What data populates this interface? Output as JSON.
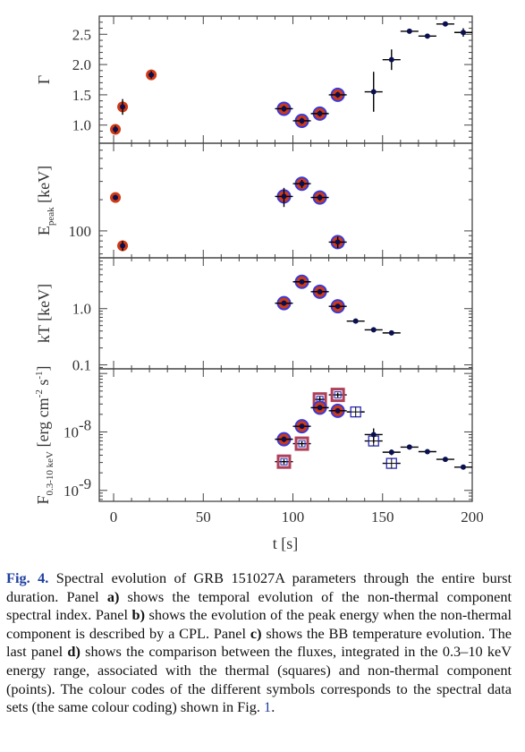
{
  "colors": {
    "frame": "#444444",
    "point_fill": "#0a0f50",
    "red_ring": "#d03a14",
    "blue_ring": "#3a3ad8",
    "square_red": "#b0405a",
    "square_blue": "#2a2ab0",
    "link": "#1f3f9e"
  },
  "chart_data": {
    "type": "scatter",
    "xlabel": "t [s]",
    "xlim": [
      -8,
      200
    ],
    "x_ticks": [
      0,
      50,
      100,
      150,
      200
    ],
    "panels": [
      {
        "id": "gamma",
        "ylabel": "Γ",
        "scale": "linear",
        "ylim": [
          0.7,
          2.8
        ],
        "y_ticks": [
          1.0,
          1.5,
          2.0,
          2.5
        ],
        "y_tick_labels": [
          "1.0",
          "1.5",
          "2.0",
          "2.5"
        ],
        "points": [
          {
            "x": 1,
            "y": 0.93,
            "xerr": 0.6,
            "yerr": 0.06,
            "style": "red"
          },
          {
            "x": 5,
            "y": 1.3,
            "xerr": 1.2,
            "yerr": 0.13,
            "style": "red"
          },
          {
            "x": 21,
            "y": 1.83,
            "xerr": 1.5,
            "yerr": 0.06,
            "style": "red"
          },
          {
            "x": 95,
            "y": 1.27,
            "xerr": 5,
            "yerr": 0.05,
            "style": "blue"
          },
          {
            "x": 105,
            "y": 1.07,
            "xerr": 5,
            "yerr": 0.05,
            "style": "blue"
          },
          {
            "x": 115,
            "y": 1.19,
            "xerr": 5,
            "yerr": 0.05,
            "style": "blue"
          },
          {
            "x": 125,
            "y": 1.5,
            "xerr": 5,
            "yerr": 0.05,
            "style": "blue"
          },
          {
            "x": 145,
            "y": 1.55,
            "xerr": 5,
            "yerr": 0.33,
            "style": "plain"
          },
          {
            "x": 155,
            "y": 2.08,
            "xerr": 5,
            "yerr": 0.17,
            "style": "plain"
          },
          {
            "x": 165,
            "y": 2.55,
            "xerr": 5,
            "yerr": 0.03,
            "style": "plain"
          },
          {
            "x": 175,
            "y": 2.47,
            "xerr": 5,
            "yerr": 0.03,
            "style": "plain"
          },
          {
            "x": 185,
            "y": 2.67,
            "xerr": 5,
            "yerr": 0.04,
            "style": "plain"
          },
          {
            "x": 195,
            "y": 2.53,
            "xerr": 5,
            "yerr": 0.07,
            "style": "plain"
          }
        ]
      },
      {
        "id": "epeak",
        "ylabel": "E",
        "ylabel_sub": "peak",
        "ylabel_unit": " [keV]",
        "scale": "log",
        "ylim": [
          55,
          700
        ],
        "y_ticks": [
          100
        ],
        "y_tick_labels": [
          "100"
        ],
        "points": [
          {
            "x": 1,
            "y": 210,
            "xerr": 0.6,
            "yerr": 12,
            "style": "red"
          },
          {
            "x": 5,
            "y": 72,
            "xerr": 1.2,
            "yerr": 8,
            "style": "red"
          },
          {
            "x": 95,
            "y": 215,
            "xerr": 5,
            "yerr": 45,
            "style": "blue"
          },
          {
            "x": 105,
            "y": 285,
            "xerr": 5,
            "yerr": 25,
            "style": "blue"
          },
          {
            "x": 115,
            "y": 210,
            "xerr": 5,
            "yerr": 15,
            "style": "blue"
          },
          {
            "x": 125,
            "y": 78,
            "xerr": 5,
            "yerr": 10,
            "style": "blue"
          }
        ]
      },
      {
        "id": "kT",
        "ylabel": "kT [keV]",
        "scale": "log",
        "ylim": [
          0.085,
          8
        ],
        "y_ticks": [
          0.1,
          1.0
        ],
        "y_tick_labels": [
          "0.1",
          "1.0"
        ],
        "points": [
          {
            "x": 95,
            "y": 1.25,
            "xerr": 5,
            "yerr": 0.12,
            "style": "blue"
          },
          {
            "x": 105,
            "y": 3.0,
            "xerr": 5,
            "yerr": 0.25,
            "style": "blue"
          },
          {
            "x": 115,
            "y": 2.0,
            "xerr": 5,
            "yerr": 0.15,
            "style": "blue"
          },
          {
            "x": 125,
            "y": 1.1,
            "xerr": 5,
            "yerr": 0.1,
            "style": "blue"
          },
          {
            "x": 135,
            "y": 0.6,
            "xerr": 5,
            "yerr": 0.03,
            "style": "plain"
          },
          {
            "x": 145,
            "y": 0.42,
            "xerr": 5,
            "yerr": 0.02,
            "style": "plain"
          },
          {
            "x": 155,
            "y": 0.37,
            "xerr": 5,
            "yerr": 0.02,
            "style": "plain"
          }
        ]
      },
      {
        "id": "flux",
        "ylabel": "F",
        "ylabel_sub": "0.3-10 keV",
        "ylabel_unit": " [erg cm",
        "ylabel_exp1": "-2",
        "ylabel_mid": " s",
        "ylabel_exp2": "-1",
        "ylabel_end": "]",
        "scale": "log",
        "ylim": [
          6.5e-10,
          1.2e-07
        ],
        "y_ticks": [
          1e-09,
          1e-08
        ],
        "y_tick_mantissa": "10",
        "y_tick_exponents": [
          "-9",
          "-8"
        ],
        "points": [
          {
            "x": 95,
            "y": 7.5e-09,
            "xerr": 5,
            "yerr": 8e-10,
            "style": "blue"
          },
          {
            "x": 105,
            "y": 1.25e-08,
            "xerr": 5,
            "yerr": 1e-09,
            "style": "blue"
          },
          {
            "x": 115,
            "y": 2.6e-08,
            "xerr": 5,
            "yerr": 2e-09,
            "style": "blue"
          },
          {
            "x": 125,
            "y": 2.3e-08,
            "xerr": 5,
            "yerr": 2e-09,
            "style": "blue"
          },
          {
            "x": 145,
            "y": 9e-09,
            "xerr": 5,
            "yerr": 2.5e-09,
            "style": "plain"
          },
          {
            "x": 155,
            "y": 4.5e-09,
            "xerr": 5,
            "yerr": 5e-10,
            "style": "plain"
          },
          {
            "x": 165,
            "y": 5.5e-09,
            "xerr": 5,
            "yerr": 3e-10,
            "style": "plain"
          },
          {
            "x": 175,
            "y": 4.6e-09,
            "xerr": 5,
            "yerr": 3e-10,
            "style": "plain"
          },
          {
            "x": 185,
            "y": 3.4e-09,
            "xerr": 5,
            "yerr": 2e-10,
            "style": "plain"
          },
          {
            "x": 195,
            "y": 2.5e-09,
            "xerr": 5,
            "yerr": 2e-10,
            "style": "plain"
          }
        ],
        "squares": [
          {
            "x": 95,
            "y": 3.1e-09,
            "xerr": 5,
            "yerr": 3e-10,
            "style": "red"
          },
          {
            "x": 105,
            "y": 6.3e-09,
            "xerr": 5,
            "yerr": 6e-10,
            "style": "red"
          },
          {
            "x": 115,
            "y": 3.6e-08,
            "xerr": 3,
            "yerr": 4e-09,
            "style": "red"
          },
          {
            "x": 125,
            "y": 4.3e-08,
            "xerr": 5,
            "yerr": 4e-09,
            "style": "red"
          },
          {
            "x": 135,
            "y": 2.2e-08,
            "xerr": 5,
            "yerr": 2e-09,
            "style": "blue"
          },
          {
            "x": 145,
            "y": 7e-09,
            "xerr": 5,
            "yerr": 7e-10,
            "style": "blue"
          },
          {
            "x": 155,
            "y": 2.9e-09,
            "xerr": 5,
            "yerr": 3e-10,
            "style": "blue"
          }
        ]
      }
    ]
  },
  "caption": {
    "label": "Fig. 4.",
    "segments": [
      {
        "t": " Spectral evolution of GRB 151027A parameters through the entire burst duration. Panel "
      },
      {
        "t": "a)",
        "b": true
      },
      {
        "t": " shows the temporal evolution of the non-thermal component spectral index. Panel "
      },
      {
        "t": "b)",
        "b": true
      },
      {
        "t": " shows the evolution of the peak energy when the non-thermal component is described by a CPL. Panel "
      },
      {
        "t": "c)",
        "b": true
      },
      {
        "t": " shows the BB temperature evolution. The last panel "
      },
      {
        "t": "d)",
        "b": true
      },
      {
        "t": " shows the comparison between the fluxes, integrated in the 0.3–10 keV energy range, associated with the thermal (squares) and non-thermal component (points). The colour codes of the different symbols corresponds to the spectral data sets (the same colour coding) shown in Fig. "
      },
      {
        "t": "1",
        "ref": true
      },
      {
        "t": "."
      }
    ]
  }
}
